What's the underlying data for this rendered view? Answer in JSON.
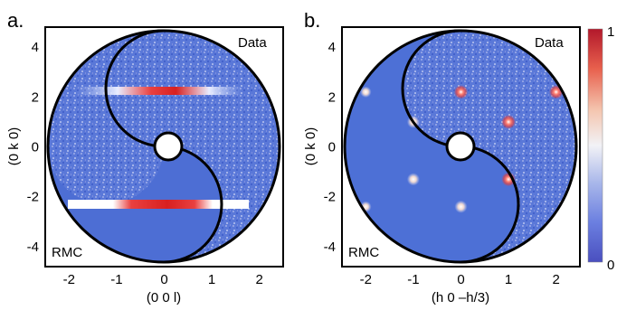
{
  "chart_data": [
    {
      "type": "heatmap",
      "panel_label": "a.",
      "xlabel": "(0 0 l)",
      "ylabel": "(0 k 0)",
      "xlim": [
        -2.5,
        2.5
      ],
      "ylim": [
        -4.8,
        4.8
      ],
      "x_ticks": [
        "-2",
        "-1",
        "0",
        "1",
        "2"
      ],
      "y_ticks": [
        "4",
        "2",
        "0",
        "-2",
        "-4"
      ],
      "region_labels": [
        "Data",
        "RMC"
      ],
      "features": [
        {
          "region": "Data",
          "kind": "diffuse-streak",
          "k": 2.2,
          "l_range": [
            -1.9,
            1.9
          ],
          "peak_l_range": [
            -0.4,
            0.6
          ]
        },
        {
          "region": "RMC",
          "kind": "diffuse-streak",
          "k": -2.3,
          "l_range": [
            -2.5,
            1.6
          ],
          "peak_l_range": [
            -1.0,
            0.5
          ]
        }
      ]
    },
    {
      "type": "heatmap",
      "panel_label": "b.",
      "xlabel": "(h 0 –h/3)",
      "ylabel": "(0 k 0)",
      "xlim": [
        -2.5,
        2.5
      ],
      "ylim": [
        -4.8,
        4.8
      ],
      "x_ticks": [
        "-2",
        "-1",
        "0",
        "1",
        "2"
      ],
      "y_ticks": [
        "4",
        "2",
        "0",
        "-2",
        "-4"
      ],
      "region_labels": [
        "Data",
        "RMC"
      ],
      "peaks": [
        {
          "h": -2,
          "k": 2.2,
          "region": "RMC",
          "intensity": 0.55
        },
        {
          "h": -1,
          "k": 1.0,
          "region": "RMC",
          "intensity": 0.75
        },
        {
          "h": -1,
          "k": -1.3,
          "region": "RMC",
          "intensity": 0.75
        },
        {
          "h": -2,
          "k": -2.4,
          "region": "RMC",
          "intensity": 0.55
        },
        {
          "h": 0,
          "k": -2.4,
          "region": "RMC",
          "intensity": 0.75
        },
        {
          "h": 0,
          "k": 2.2,
          "region": "Data",
          "intensity": 0.9
        },
        {
          "h": 1,
          "k": 1.0,
          "region": "Data",
          "intensity": 0.95
        },
        {
          "h": 1,
          "k": -1.3,
          "region": "Data",
          "intensity": 0.95
        },
        {
          "h": 2,
          "k": 2.2,
          "region": "Data",
          "intensity": 0.9
        }
      ]
    }
  ],
  "colorbar": {
    "range": [
      0,
      1
    ],
    "tick_labels": [
      "1",
      "0"
    ],
    "colors": [
      "#b2182b",
      "#e8604d",
      "#f4c6b0",
      "#f2f2f6",
      "#a9b7ea",
      "#6b7fe0",
      "#4a4fbf"
    ]
  },
  "colors": {
    "background_blue": "#4c6fd2",
    "data_blue": "#5776d8",
    "outline": "#000000"
  }
}
